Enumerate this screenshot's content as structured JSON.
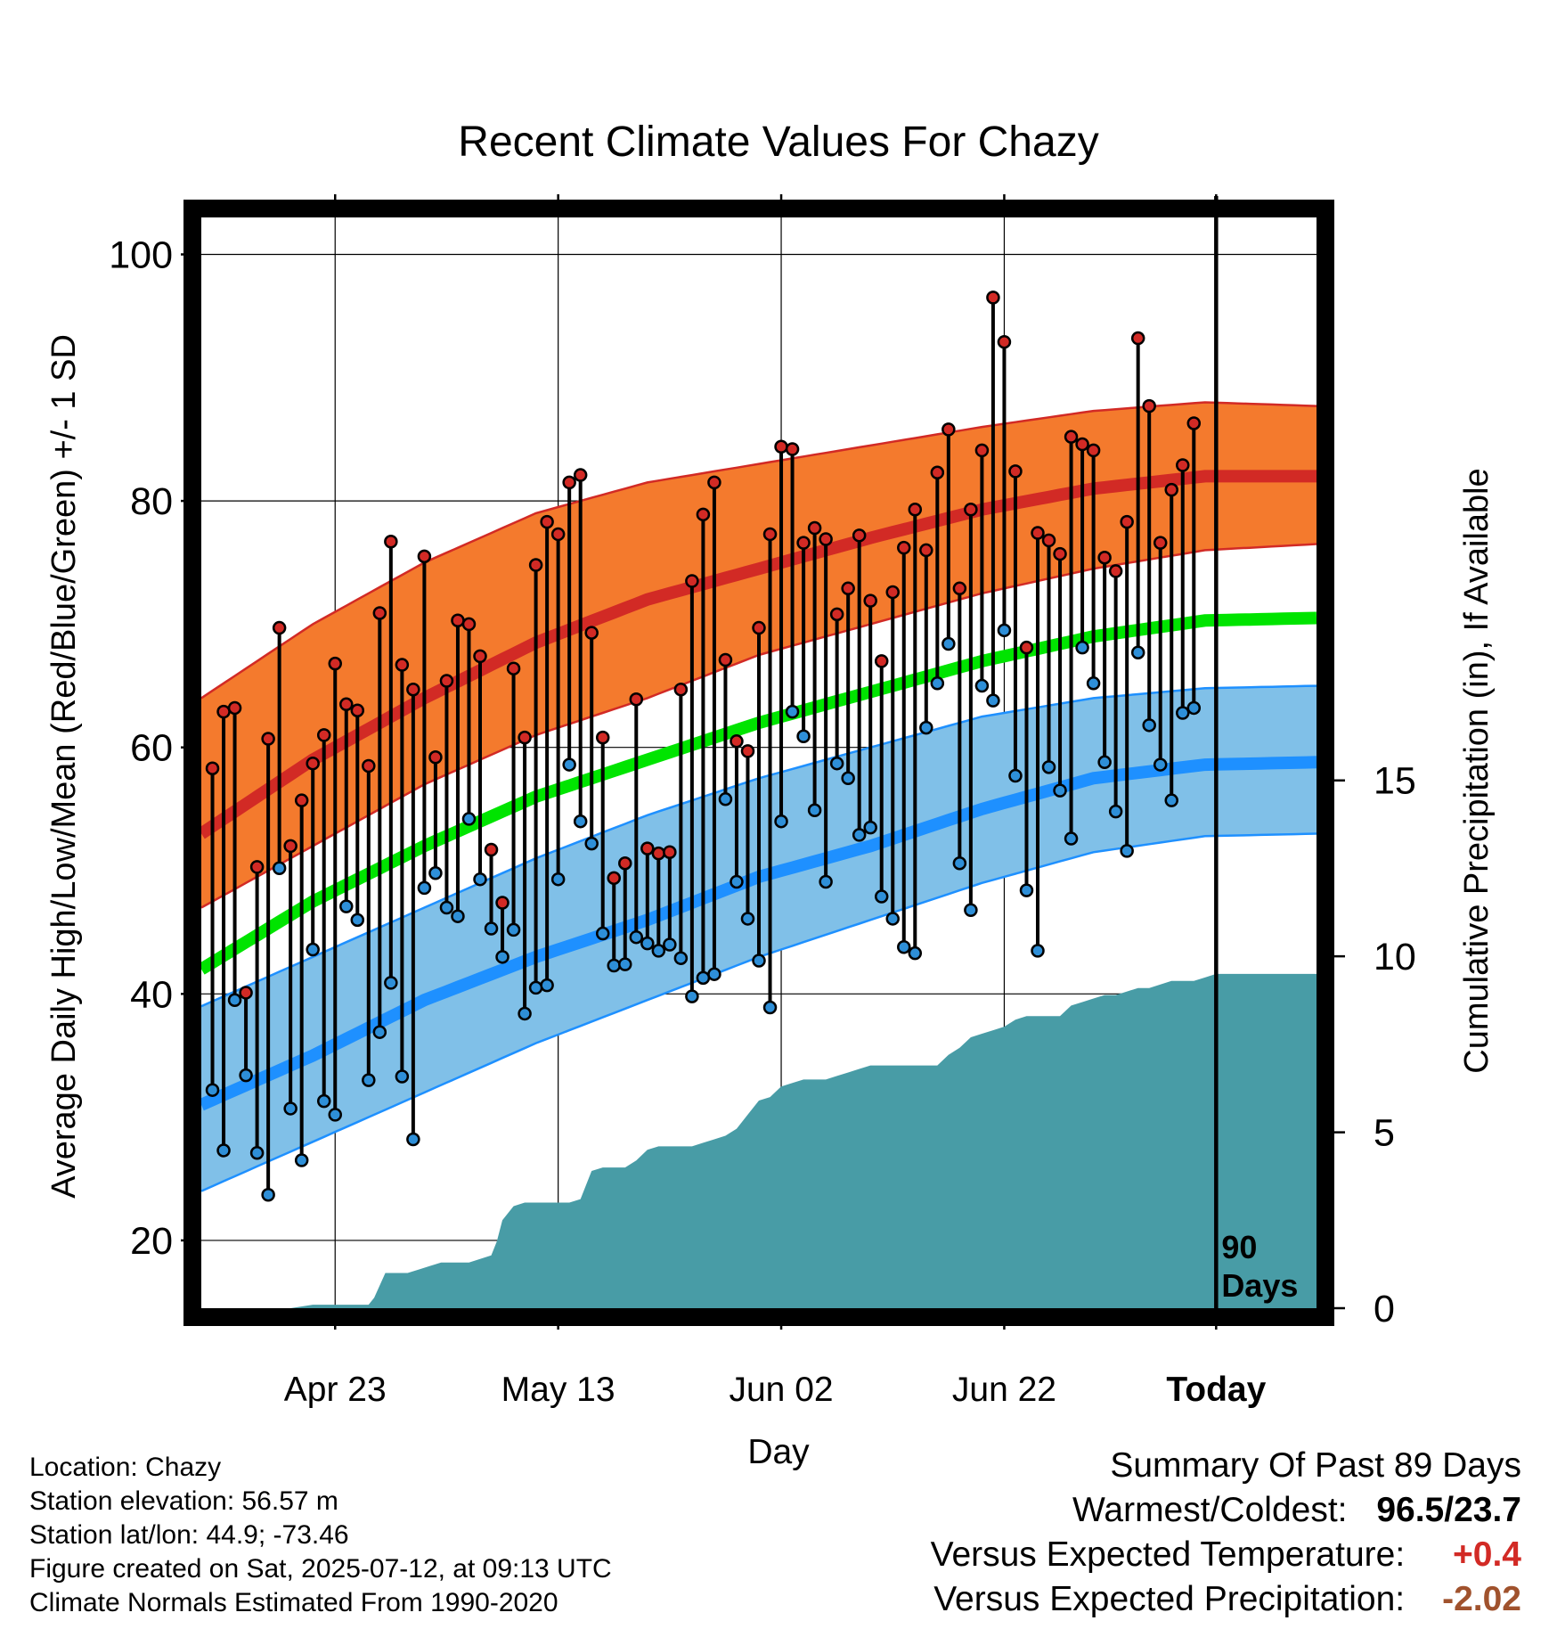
{
  "chart_data": {
    "type": "line",
    "title": "Recent Climate Values For Chazy",
    "xlabel": "Day",
    "ylabel_left": "Average Daily High/Low/Mean (Red/Blue/Green) +/- 1 SD",
    "ylabel_right": "Cumulative Precipitation (in), If Available",
    "ylim_left": [
      14.5,
      103
    ],
    "ylim_right": [
      0,
      31
    ],
    "xlim_days": [
      0,
      100
    ],
    "x_ticks": [
      {
        "day": 12,
        "label": "Apr 23"
      },
      {
        "day": 32,
        "label": "May 13"
      },
      {
        "day": 52,
        "label": "Jun 02"
      },
      {
        "day": 72,
        "label": "Jun 22"
      },
      {
        "day": 91,
        "label": "Today"
      }
    ],
    "y_ticks_left": [
      20,
      40,
      60,
      80,
      100
    ],
    "y_ticks_left_minor": [
      30,
      50,
      70,
      90
    ],
    "y_ticks_right": [
      0,
      5,
      10,
      15
    ],
    "grid": true,
    "today_marker": {
      "day": 91,
      "label_line1": "90",
      "label_line2": "Days"
    },
    "normal_high": {
      "days": [
        0,
        10,
        20,
        30,
        40,
        50,
        60,
        70,
        80,
        90,
        100
      ],
      "mean": [
        53.0,
        59.0,
        64.0,
        68.5,
        72.0,
        74.5,
        77.0,
        79.3,
        81.0,
        82.0,
        82.0
      ],
      "upper": [
        64.0,
        70.0,
        75.0,
        79.0,
        81.5,
        83.0,
        84.5,
        86.0,
        87.3,
        88.0,
        87.7
      ],
      "lower": [
        47.0,
        52.0,
        57.0,
        61.0,
        64.0,
        67.5,
        70.0,
        72.5,
        74.5,
        76.0,
        76.5
      ]
    },
    "normal_mean": {
      "days": [
        0,
        10,
        20,
        30,
        40,
        50,
        60,
        70,
        80,
        90,
        100
      ],
      "values": [
        42.0,
        47.5,
        52.0,
        56.0,
        59.0,
        62.0,
        64.5,
        67.0,
        69.0,
        70.3,
        70.5
      ]
    },
    "normal_low": {
      "days": [
        0,
        10,
        20,
        30,
        40,
        50,
        60,
        70,
        80,
        90,
        100
      ],
      "mean": [
        31.0,
        35.0,
        39.5,
        43.0,
        46.0,
        49.5,
        52.0,
        55.0,
        57.5,
        58.6,
        58.8
      ],
      "upper": [
        39.0,
        43.0,
        47.0,
        51.0,
        54.5,
        57.5,
        60.0,
        62.5,
        64.0,
        64.8,
        65.0
      ],
      "lower": [
        24.0,
        28.0,
        32.0,
        36.0,
        39.5,
        43.0,
        46.0,
        49.0,
        51.5,
        52.8,
        53.0
      ]
    },
    "daily_high": [
      58.3,
      62.9,
      63.2,
      40.1,
      50.3,
      60.7,
      69.7,
      52.0,
      55.7,
      58.7,
      61.0,
      66.8,
      63.5,
      63.0,
      58.5,
      70.9,
      76.7,
      66.7,
      64.7,
      75.5,
      59.2,
      65.4,
      70.3,
      70.0,
      67.4,
      51.7,
      47.4,
      66.4,
      60.8,
      74.8,
      78.3,
      77.3,
      81.5,
      82.1,
      69.3,
      60.8,
      49.4,
      50.6,
      63.9,
      51.8,
      51.4,
      51.5,
      64.7,
      73.5,
      78.9,
      81.5,
      67.1,
      60.5,
      59.7,
      69.7,
      77.3,
      84.4,
      84.2,
      76.6,
      77.8,
      76.9,
      70.8,
      72.9,
      77.2,
      71.9,
      67.0,
      72.6,
      76.2,
      79.3,
      76.0,
      82.3,
      85.8,
      72.9,
      79.3,
      84.1,
      96.5,
      92.9,
      82.4,
      68.1,
      77.4,
      76.8,
      75.7,
      85.2,
      84.6,
      84.1,
      75.4,
      74.3,
      78.3,
      93.2,
      87.7,
      76.6,
      80.9,
      82.9,
      86.3
    ],
    "daily_low": [
      32.2,
      27.3,
      39.5,
      33.4,
      27.1,
      23.7,
      50.2,
      30.7,
      26.5,
      43.6,
      31.3,
      30.2,
      47.1,
      46.0,
      33.0,
      36.9,
      40.9,
      33.3,
      28.2,
      48.6,
      49.8,
      47.0,
      46.3,
      54.2,
      49.3,
      45.3,
      43.0,
      45.2,
      38.4,
      40.5,
      40.7,
      49.3,
      58.6,
      54.0,
      52.2,
      44.9,
      42.3,
      42.4,
      44.6,
      44.1,
      43.5,
      44.0,
      42.9,
      39.8,
      41.3,
      41.6,
      55.8,
      49.1,
      46.1,
      42.7,
      38.9,
      54.0,
      62.9,
      60.9,
      54.9,
      49.1,
      58.7,
      57.5,
      52.9,
      53.5,
      47.9,
      46.1,
      43.8,
      43.3,
      61.6,
      65.2,
      68.4,
      50.6,
      46.8,
      65.0,
      63.8,
      69.5,
      57.7,
      48.4,
      43.5,
      58.4,
      56.5,
      52.6,
      68.1,
      65.2,
      58.8,
      54.8,
      51.6,
      67.7,
      61.8,
      58.6,
      55.7,
      62.8,
      63.2
    ],
    "precip_days": [
      0,
      8,
      10,
      11,
      12,
      12.8,
      13.5,
      14,
      15,
      15.5,
      16.5,
      17.5,
      18.5,
      19.5,
      20.5,
      21.5,
      22.5,
      24,
      26,
      26.5,
      27,
      28,
      29,
      30,
      31,
      33,
      34,
      35,
      36,
      37,
      38,
      39,
      40,
      41,
      42,
      43,
      44,
      45,
      46,
      47,
      48,
      49,
      50,
      51,
      52,
      53,
      54,
      55,
      56,
      57,
      58,
      59,
      60,
      61,
      62,
      63,
      64,
      65,
      66,
      67,
      68,
      69,
      70,
      71,
      72,
      73,
      74,
      75,
      76,
      77,
      78,
      79,
      80,
      81,
      82,
      83,
      84,
      85,
      86,
      87,
      88,
      89,
      90,
      91,
      100
    ],
    "precip_values": [
      0,
      0,
      0.1,
      0.1,
      0.1,
      0.1,
      0.1,
      0.1,
      0.1,
      0.3,
      1.0,
      1.0,
      1.0,
      1.1,
      1.2,
      1.3,
      1.3,
      1.3,
      1.5,
      1.9,
      2.5,
      2.9,
      3.0,
      3.0,
      3.0,
      3.0,
      3.1,
      3.9,
      4.0,
      4.0,
      4.0,
      4.2,
      4.5,
      4.6,
      4.6,
      4.6,
      4.6,
      4.7,
      4.8,
      4.9,
      5.1,
      5.5,
      5.9,
      6.0,
      6.3,
      6.4,
      6.5,
      6.5,
      6.5,
      6.6,
      6.7,
      6.8,
      6.9,
      6.9,
      6.9,
      6.9,
      6.9,
      6.9,
      6.9,
      7.2,
      7.4,
      7.7,
      7.8,
      7.9,
      8.0,
      8.2,
      8.3,
      8.3,
      8.3,
      8.3,
      8.6,
      8.7,
      8.8,
      8.9,
      8.9,
      9.0,
      9.1,
      9.1,
      9.2,
      9.3,
      9.3,
      9.3,
      9.4,
      9.5,
      9.5
    ],
    "colors": {
      "high_band": "#F47A2D",
      "high_line": "#D22A25",
      "mean_line": "#00E400",
      "low_band": "#80C0E8",
      "low_line": "#1E90FF",
      "precip_fill": "#489CA6",
      "high_marker": "#D22A25",
      "low_marker": "#2E8FD8"
    }
  },
  "info": {
    "location": "Location: Chazy",
    "elevation": "Station elevation: 56.57 m",
    "latlon": "Station lat/lon: 44.9; -73.46",
    "created": "Figure created on Sat, 2025-07-12, at 09:13 UTC",
    "normals": "Climate Normals Estimated From 1990-2020"
  },
  "summary": {
    "title": "Summary Of Past 89 Days",
    "warmest_coldest_label": "Warmest/Coldest:",
    "warmest_coldest_value": "96.5/23.7",
    "temp_label": "Versus Expected Temperature:",
    "temp_value": "+0.4",
    "temp_color": "#D22A25",
    "precip_label": "Versus Expected Precipitation:",
    "precip_value": "-2.02",
    "precip_color": "#A0522D"
  }
}
